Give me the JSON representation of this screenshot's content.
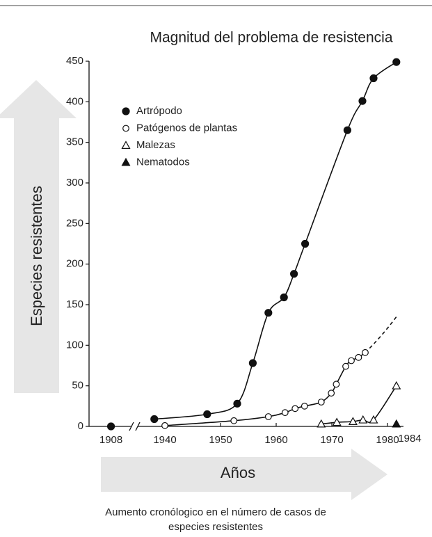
{
  "chart_data": {
    "type": "scatter",
    "title": "Magnitud del problema de resistencia",
    "y_label": "Especies resistentes",
    "x_label": "Años",
    "caption": [
      "Aumento cronólogico en el número de casos de",
      "especies resistentes"
    ],
    "xlim": [
      1880,
      1985
    ],
    "x_break": 1935,
    "xticks": [
      1908,
      1940,
      1950,
      1960,
      1970,
      1980,
      1984
    ],
    "ylim": [
      0,
      450
    ],
    "yticks": [
      0,
      50,
      100,
      150,
      200,
      250,
      300,
      350,
      400,
      450
    ],
    "legend": "upper left",
    "series": [
      {
        "name": "Artrópodo",
        "marker": "circle-filled",
        "color": "#111111",
        "x": [
          1908,
          1938.1,
          1947.6,
          1953,
          1955.8,
          1958.6,
          1961.4,
          1963.2,
          1965.2,
          1972.8,
          1975.5,
          1977.5,
          1981.6
        ],
        "values": [
          0,
          9,
          15,
          28,
          78,
          140,
          159,
          188,
          225,
          365,
          401,
          429,
          449
        ]
      },
      {
        "name": "Patógenos de plantas",
        "marker": "circle-open",
        "color": "#111111",
        "x": [
          1940,
          1952.4,
          1958.6,
          1961.6,
          1963.4,
          1965.1,
          1968.1,
          1969.9,
          1970.8,
          1972.5,
          1973.5,
          1974.8,
          1976
        ],
        "values": [
          1,
          7,
          12,
          17,
          22,
          25,
          30,
          41,
          52,
          74,
          81,
          85,
          91
        ],
        "extension": {
          "x": 1981.6,
          "value": 135
        }
      },
      {
        "name": "Malezas",
        "marker": "triangle-open",
        "color": "#111111",
        "x": [
          1968.1,
          1970.9,
          1973.8,
          1975.6,
          1977.5,
          1981.6
        ],
        "values": [
          3,
          5,
          6,
          8,
          8,
          50
        ]
      },
      {
        "name": "Nematodos",
        "marker": "triangle-filled",
        "color": "#111111",
        "x": [
          1981.6
        ],
        "values": [
          3
        ]
      }
    ]
  }
}
